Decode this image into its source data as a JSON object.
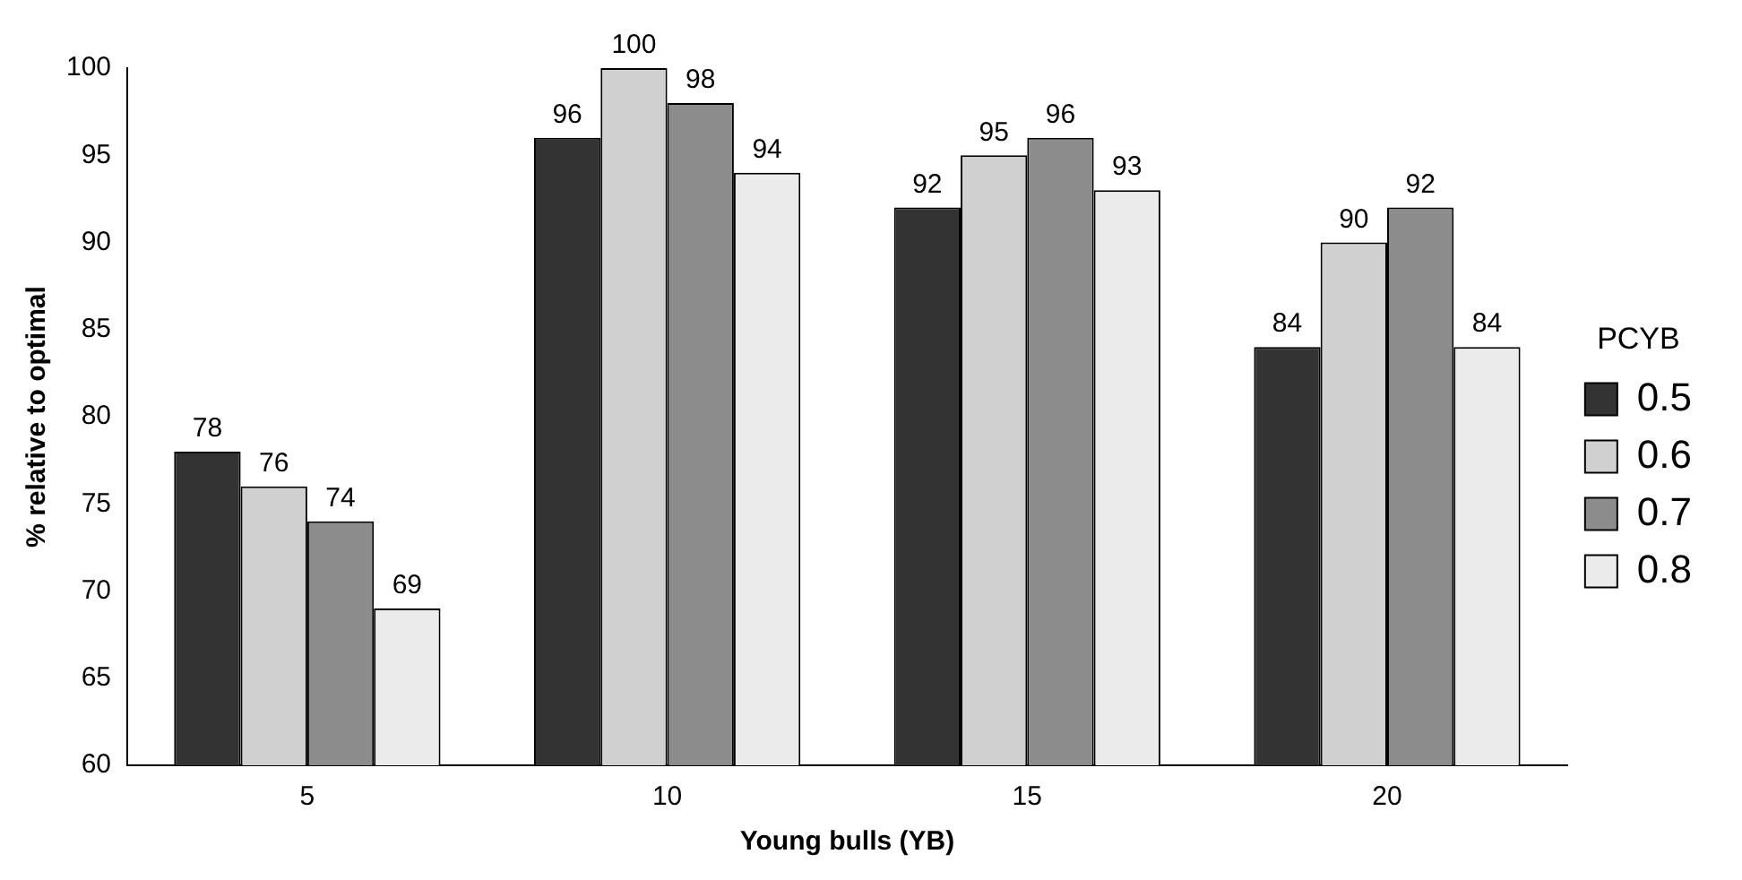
{
  "chart_data": {
    "type": "bar",
    "xlabel": "Young bulls (YB)",
    "ylabel": "% relative to optimal",
    "legend_title": "PCYB",
    "categories": [
      "5",
      "10",
      "15",
      "20"
    ],
    "series": [
      {
        "name": "0.5",
        "color": "#333333",
        "values": [
          78,
          96,
          92,
          84
        ]
      },
      {
        "name": "0.6",
        "color": "#d0d0d0",
        "values": [
          76,
          100,
          95,
          90
        ]
      },
      {
        "name": "0.7",
        "color": "#8c8c8c",
        "values": [
          74,
          98,
          96,
          92
        ]
      },
      {
        "name": "0.8",
        "color": "#ebebeb",
        "values": [
          69,
          94,
          93,
          84
        ]
      }
    ],
    "ylim": [
      60,
      100
    ],
    "yticks": [
      60,
      65,
      70,
      75,
      80,
      85,
      90,
      95,
      100
    ],
    "grid": false,
    "legend": "right",
    "data_labels": true
  }
}
